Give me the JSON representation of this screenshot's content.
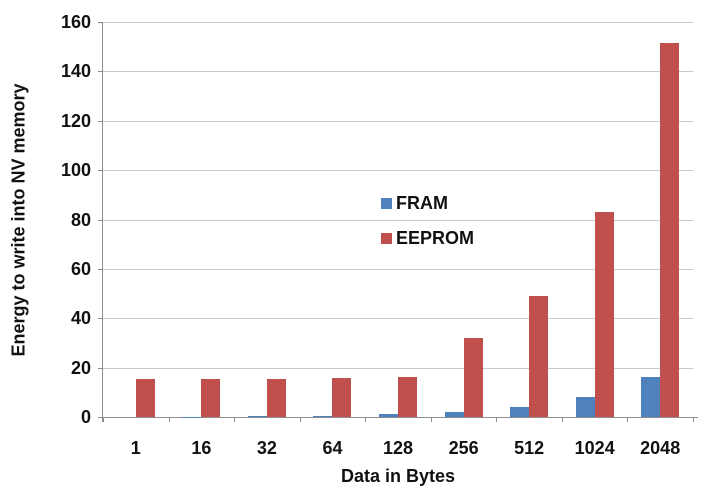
{
  "chart_data": {
    "type": "bar",
    "title": "",
    "xlabel": "Data in Bytes",
    "ylabel": "Energy to write into NV memory",
    "categories": [
      "1",
      "16",
      "32",
      "64",
      "128",
      "256",
      "512",
      "1024",
      "2048"
    ],
    "series": [
      {
        "name": "FRAM",
        "color": "#4F81BD",
        "values": [
          0.02,
          0.1,
          0.3,
          0.5,
          1.1,
          2.0,
          4.0,
          8.0,
          16.2
        ]
      },
      {
        "name": "EEPROM",
        "color": "#C0504D",
        "values": [
          15.2,
          15.2,
          15.4,
          15.6,
          16.2,
          32.0,
          49.0,
          83.0,
          151.5
        ]
      }
    ],
    "ylim": [
      0,
      160
    ],
    "yticks": [
      0,
      20,
      40,
      60,
      80,
      100,
      120,
      140,
      160
    ],
    "grid": true,
    "legend_position": "center-inside",
    "bar_layout": "clustered"
  },
  "style": {
    "gridline_color": "#c9c9c9",
    "axis_color": "#8e8e8e",
    "text_color": "#111111",
    "background": "#ffffff"
  }
}
